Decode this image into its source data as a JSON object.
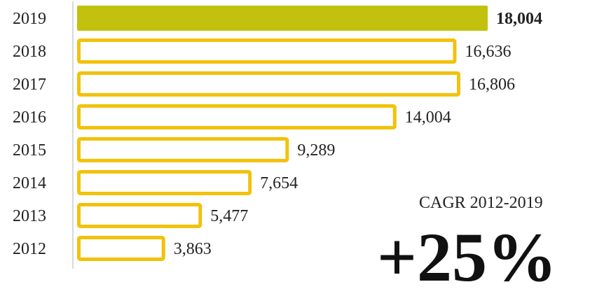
{
  "chart_data": {
    "type": "bar",
    "orientation": "horizontal",
    "categories": [
      "2019",
      "2018",
      "2017",
      "2016",
      "2015",
      "2014",
      "2013",
      "2012"
    ],
    "values": [
      18004,
      16636,
      16806,
      14004,
      9289,
      7654,
      5477,
      3863
    ],
    "value_labels": [
      "18,004",
      "16,636",
      "16,806",
      "14,004",
      "9,289",
      "7,654",
      "5,477",
      "3,863"
    ],
    "highlight_index": 0,
    "title": "",
    "xlabel": "",
    "ylabel": "",
    "xlim": [
      0,
      18004
    ],
    "grid": false,
    "colors": {
      "highlight_fill": "#c2c20e",
      "bar_outline": "#f2c20c",
      "axis": "#cccccc"
    }
  },
  "annotation": {
    "label": "CAGR 2012-2019",
    "value": "+25%"
  }
}
